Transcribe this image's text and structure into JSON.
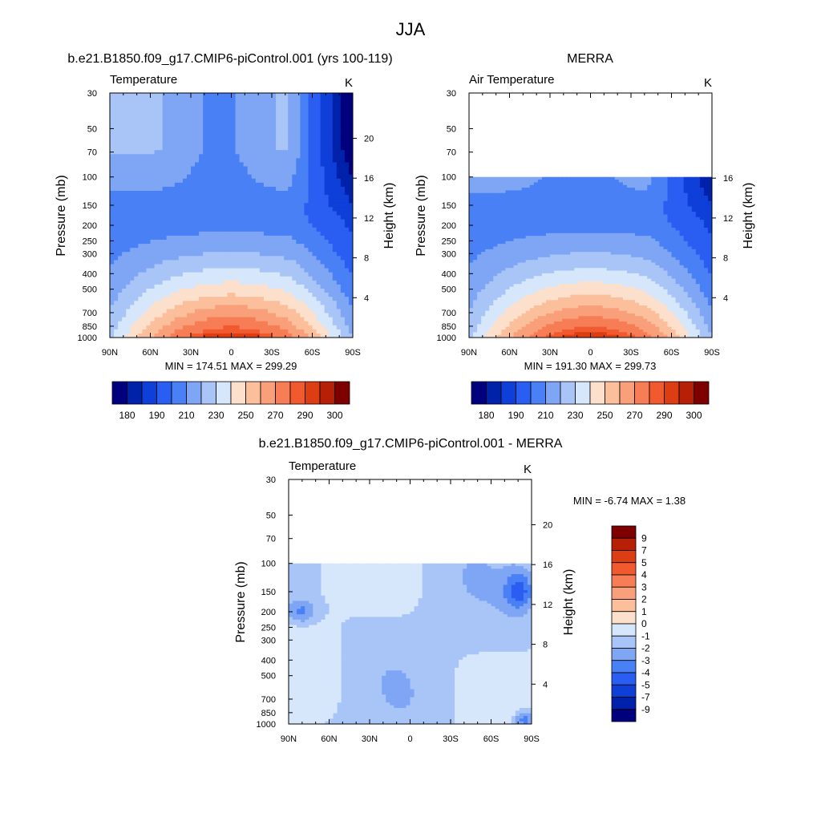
{
  "figure": {
    "title": "JJA"
  },
  "colors": {
    "abs_palette": [
      "#00007f",
      "#0022aa",
      "#0f3fd9",
      "#2a5ef2",
      "#4a80f5",
      "#7fa6f5",
      "#a9c5f7",
      "#d6e6fb",
      "#fde0cc",
      "#fbbf9c",
      "#f99f7a",
      "#f67d55",
      "#f05a2e",
      "#dc3d13",
      "#b71f06",
      "#7f0000"
    ],
    "diff_palette": [
      "#00007f",
      "#0022aa",
      "#0f3fd9",
      "#2a5ef2",
      "#4a80f5",
      "#7fa6f5",
      "#a9c5f7",
      "#d6e6fb",
      "#fde0cc",
      "#fbbf9c",
      "#f99f7a",
      "#f67d55",
      "#f05a2e",
      "#dc3d13",
      "#b71f06",
      "#7f0000"
    ]
  },
  "chart_data": [
    {
      "type": "heatmap",
      "id": "model",
      "title": "b.e21.B1850.f09_g17.CMIP6-piControl.001 (yrs 100-119)",
      "variable_label": "Temperature",
      "units": "K",
      "x_labels": [
        "90N",
        "60N",
        "30N",
        "0",
        "30S",
        "60S",
        "90S"
      ],
      "y_label": "Pressure (mb)",
      "y_ticks": [
        30,
        50,
        70,
        100,
        150,
        200,
        250,
        300,
        400,
        500,
        700,
        850,
        1000
      ],
      "y_range_mb": [
        30,
        1000
      ],
      "height_label": "Height (km)",
      "height_ticks": [
        4,
        8,
        12,
        16,
        20
      ],
      "stats": "MIN = 174.51  MAX = 299.29",
      "data_top_mb": 30,
      "colorbar": {
        "orientation": "horizontal",
        "labels": [
          "180",
          "190",
          "210",
          "230",
          "250",
          "270",
          "290",
          "300"
        ]
      }
    },
    {
      "type": "heatmap",
      "id": "obs",
      "title": "MERRA",
      "variable_label": "Air Temperature",
      "units": "K",
      "x_labels": [
        "90N",
        "60N",
        "30N",
        "0",
        "30S",
        "60S",
        "90S"
      ],
      "y_label": "Pressure (mb)",
      "y_ticks": [
        30,
        50,
        70,
        100,
        150,
        200,
        250,
        300,
        400,
        500,
        700,
        850,
        1000
      ],
      "y_range_mb": [
        30,
        1000
      ],
      "height_label": "Height (km)",
      "height_ticks": [
        4,
        8,
        12,
        16
      ],
      "stats": "MIN = 191.30  MAX = 299.73",
      "data_top_mb": 100,
      "colorbar": {
        "orientation": "horizontal",
        "labels": [
          "180",
          "190",
          "210",
          "230",
          "250",
          "270",
          "290",
          "300"
        ]
      }
    },
    {
      "type": "heatmap",
      "id": "diff",
      "title": "b.e21.B1850.f09_g17.CMIP6-piControl.001 - MERRA",
      "variable_label": "Temperature",
      "units": "K",
      "x_labels": [
        "90N",
        "60N",
        "30N",
        "0",
        "30S",
        "60S",
        "90S"
      ],
      "y_label": "Pressure (mb)",
      "y_ticks": [
        30,
        50,
        70,
        100,
        150,
        200,
        250,
        300,
        400,
        500,
        700,
        850,
        1000
      ],
      "y_range_mb": [
        30,
        1000
      ],
      "height_label": "Height (km)",
      "height_ticks": [
        4,
        8,
        12,
        16,
        20
      ],
      "stats": "MIN =  -6.74  MAX =   1.38",
      "data_top_mb": 100,
      "colorbar": {
        "orientation": "vertical",
        "labels": [
          "9",
          "7",
          "5",
          "4",
          "3",
          "2",
          "1",
          "0",
          "-1",
          "-2",
          "-3",
          "-4",
          "-5",
          "-7",
          "-9"
        ]
      }
    }
  ]
}
